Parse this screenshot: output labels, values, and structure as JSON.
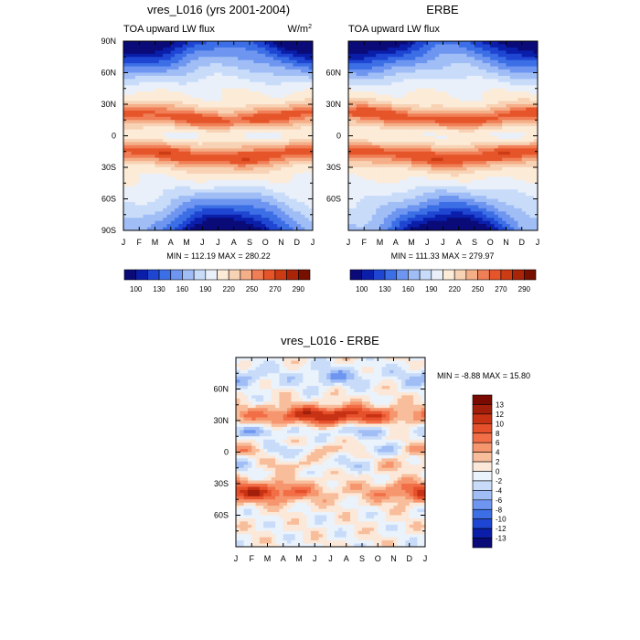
{
  "chart_data": [
    {
      "type": "heatmap",
      "title": "vres_L016 (yrs 2001-2004)",
      "subtitle_left": "TOA upward LW flux",
      "units_label": "W/m",
      "units_exponent": "2",
      "x_tick_labels": [
        "J",
        "F",
        "M",
        "A",
        "M",
        "J",
        "J",
        "A",
        "S",
        "O",
        "N",
        "D",
        "J"
      ],
      "y_tick_labels": [
        "90N",
        "60N",
        "30N",
        "0",
        "30S",
        "60S",
        "90S"
      ],
      "y_values": [
        90,
        60,
        30,
        0,
        -30,
        -60,
        -90
      ],
      "ylim": [
        -90,
        90
      ],
      "min_max_text": "MIN = 112.19 MAX = 280.22",
      "min": 112.19,
      "max": 280.22,
      "colorbar_labels": [
        "100",
        "130",
        "160",
        "190",
        "220",
        "250",
        "270",
        "290"
      ]
    },
    {
      "type": "heatmap",
      "title": "ERBE",
      "subtitle_left": "TOA upward LW flux",
      "x_tick_labels": [
        "J",
        "F",
        "M",
        "A",
        "M",
        "J",
        "J",
        "A",
        "S",
        "O",
        "N",
        "D",
        "J"
      ],
      "y_tick_labels": [
        "60N",
        "30N",
        "0",
        "30S",
        "60S"
      ],
      "y_values": [
        60,
        30,
        0,
        -30,
        -60
      ],
      "ylim": [
        -90,
        90
      ],
      "min_max_text": "MIN = 111.33 MAX = 279.97",
      "min": 111.33,
      "max": 279.97,
      "colorbar_labels": [
        "100",
        "130",
        "160",
        "190",
        "220",
        "250",
        "270",
        "290"
      ]
    },
    {
      "type": "heatmap",
      "title": "vres_L016 - ERBE",
      "x_tick_labels": [
        "J",
        "F",
        "M",
        "A",
        "M",
        "J",
        "J",
        "A",
        "S",
        "O",
        "N",
        "D",
        "J"
      ],
      "y_tick_labels": [
        "60N",
        "30N",
        "0",
        "30S",
        "60S"
      ],
      "y_values": [
        60,
        30,
        0,
        -30,
        -60
      ],
      "ylim": [
        -90,
        90
      ],
      "min_max_text": "MIN =  -8.88 MAX =  15.80",
      "min": -8.88,
      "max": 15.8,
      "colorbar_labels": [
        "13",
        "12",
        "10",
        "8",
        "6",
        "4",
        "2",
        "0",
        "-2",
        "-4",
        "-6",
        "-8",
        "-10",
        "-12",
        "-13"
      ]
    }
  ],
  "colors": {
    "abs_scale": [
      "#0a0a78",
      "#0a1eaa",
      "#1e46d2",
      "#3c6ee6",
      "#6e96f0",
      "#a0bef5",
      "#c8dcfa",
      "#eaf0fa",
      "#fcebd7",
      "#f8d2b4",
      "#f4ae88",
      "#f07e56",
      "#e6552a",
      "#cc3c14",
      "#aa2408",
      "#781000"
    ],
    "diff_scale": [
      "#780a00",
      "#a01e0a",
      "#c83214",
      "#e6502a",
      "#f26e46",
      "#f6966e",
      "#f8be9c",
      "#fce8d8",
      "#eaf2fc",
      "#c8dcfa",
      "#a0bef5",
      "#6e96f0",
      "#3c6ee6",
      "#1e46d2",
      "#0a1eaa",
      "#0a0a78"
    ]
  }
}
